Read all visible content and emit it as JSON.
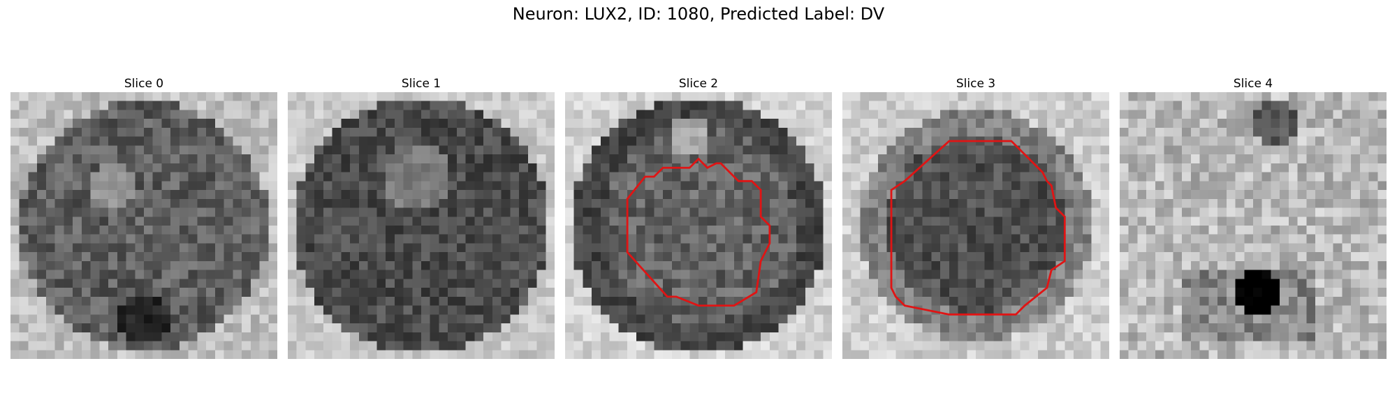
{
  "figure": {
    "title": "Neuron: LUX2, ID: 1080, Predicted Label: DV"
  },
  "slices": [
    {
      "label": "Slice 0",
      "profile": "dark-center-blob",
      "contour": false
    },
    {
      "label": "Slice 1",
      "profile": "dark-disk",
      "contour": false
    },
    {
      "label": "Slice 2",
      "profile": "ring-light-edges",
      "contour": true
    },
    {
      "label": "Slice 3",
      "profile": "dark-center-light-edges",
      "contour": true
    },
    {
      "label": "Slice 4",
      "profile": "light-noisy",
      "contour": false
    }
  ],
  "colors": {
    "contour": "#e01414",
    "background": "#ffffff"
  }
}
